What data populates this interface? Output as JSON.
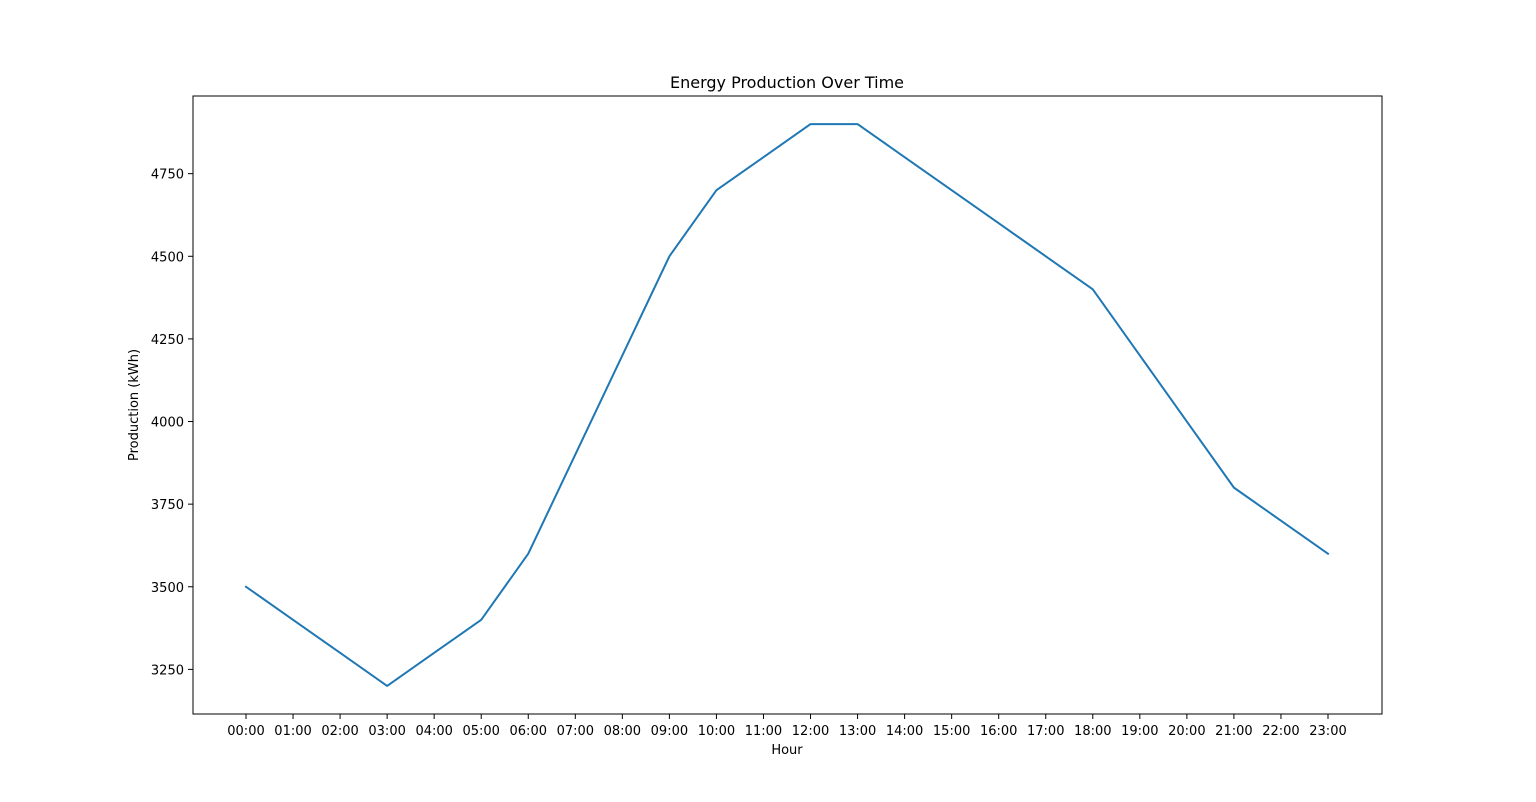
{
  "chart_data": {
    "type": "line",
    "title": "Energy Production Over Time",
    "xlabel": "Hour",
    "ylabel": "Production (kWh)",
    "categories": [
      "00:00",
      "01:00",
      "02:00",
      "03:00",
      "04:00",
      "05:00",
      "06:00",
      "07:00",
      "08:00",
      "09:00",
      "10:00",
      "11:00",
      "12:00",
      "13:00",
      "14:00",
      "15:00",
      "16:00",
      "17:00",
      "18:00",
      "19:00",
      "20:00",
      "21:00",
      "22:00",
      "23:00"
    ],
    "series": [
      {
        "values": [
          3500,
          3400,
          3300,
          3200,
          3300,
          3400,
          3600,
          3900,
          4200,
          4500,
          4700,
          4800,
          4900,
          4900,
          4800,
          4700,
          4600,
          4500,
          4400,
          4200,
          4000,
          3800,
          3700,
          3600
        ],
        "color": "#1f77b4"
      }
    ],
    "yticks": [
      3250,
      3500,
      3750,
      4000,
      4250,
      4500,
      4750
    ],
    "ylim": [
      3115,
      4985
    ],
    "grid": false,
    "legend": "none"
  }
}
